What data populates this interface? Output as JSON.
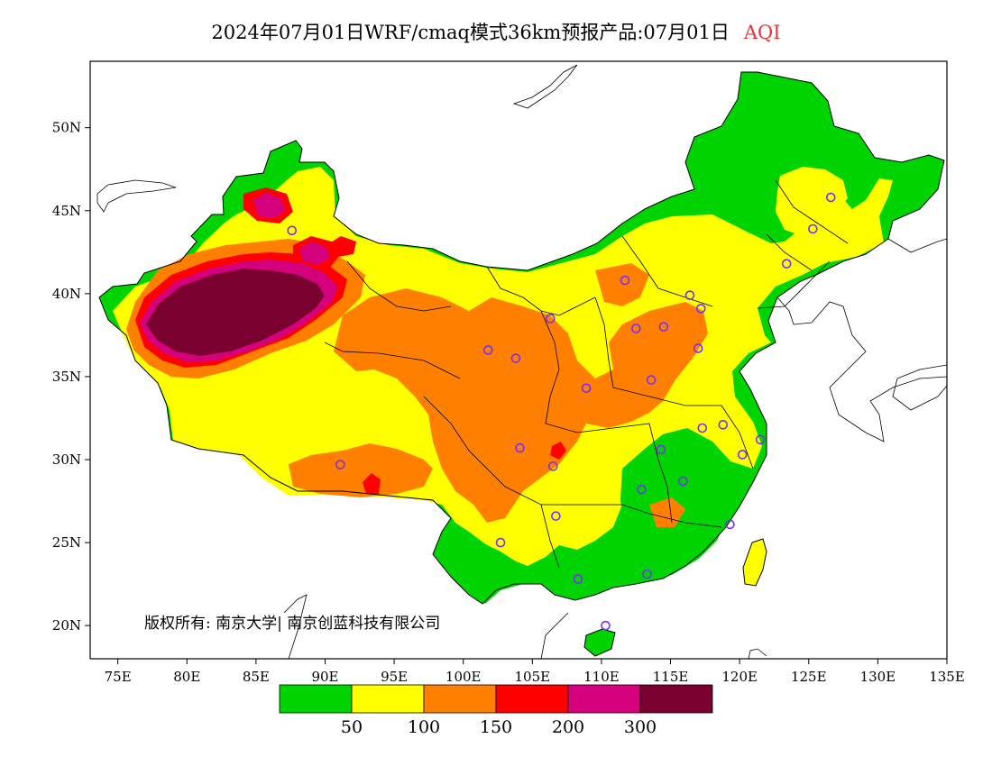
{
  "title": {
    "text": "2024年07月01日WRF/cmaq模式36km预报产品:07月01日",
    "pollutant": "AQI",
    "pollutant_color": "#e8313c"
  },
  "map": {
    "lon_range": [
      73,
      135
    ],
    "lat_range": [
      18,
      54
    ],
    "lon_ticks": [
      "75E",
      "80E",
      "85E",
      "90E",
      "95E",
      "100E",
      "105E",
      "110E",
      "115E",
      "120E",
      "125E",
      "130E",
      "135E"
    ],
    "lat_ticks": [
      "20N",
      "25N",
      "30N",
      "35N",
      "40N",
      "45N",
      "50N"
    ],
    "copyright": "版权所有: 南京大学| 南京创蓝科技有限公司"
  },
  "legend": {
    "colors": [
      "#00d400",
      "#ffff00",
      "#ff8000",
      "#ff0000",
      "#d4007c",
      "#7a0030"
    ],
    "thresholds": [
      "50",
      "100",
      "150",
      "200",
      "300"
    ]
  },
  "stations": [
    [
      87.6,
      43.8
    ],
    [
      91.1,
      29.7
    ],
    [
      101.8,
      36.6
    ],
    [
      103.8,
      36.1
    ],
    [
      106.3,
      38.5
    ],
    [
      111.7,
      40.8
    ],
    [
      116.4,
      39.9
    ],
    [
      117.2,
      39.1
    ],
    [
      114.5,
      38.0
    ],
    [
      112.5,
      37.9
    ],
    [
      117.0,
      36.7
    ],
    [
      113.6,
      34.8
    ],
    [
      108.9,
      34.3
    ],
    [
      104.1,
      30.7
    ],
    [
      106.5,
      29.6
    ],
    [
      106.7,
      26.6
    ],
    [
      102.7,
      25.0
    ],
    [
      108.3,
      22.8
    ],
    [
      113.3,
      23.1
    ],
    [
      110.3,
      20.0
    ],
    [
      112.9,
      28.2
    ],
    [
      115.9,
      28.7
    ],
    [
      114.3,
      30.6
    ],
    [
      117.3,
      31.9
    ],
    [
      118.8,
      32.1
    ],
    [
      120.2,
      30.3
    ],
    [
      121.5,
      31.2
    ],
    [
      119.3,
      26.1
    ],
    [
      123.4,
      41.8
    ],
    [
      125.3,
      43.9
    ],
    [
      126.6,
      45.8
    ]
  ]
}
